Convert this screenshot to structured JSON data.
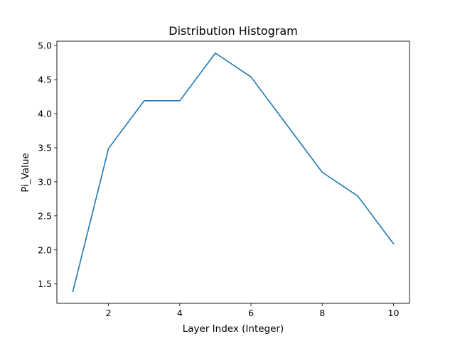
{
  "chart_data": {
    "type": "line",
    "title": "Distribution Histogram",
    "xlabel": "Layer Index (Integer)",
    "ylabel": "Pi_Value",
    "x": [
      1,
      2,
      3,
      4,
      5,
      6,
      7,
      8,
      9,
      10
    ],
    "series": [
      {
        "values": [
          1.39,
          3.49,
          4.19,
          4.19,
          4.89,
          4.54,
          3.84,
          3.14,
          2.79,
          2.09
        ],
        "color": "#1f77b4"
      }
    ],
    "xlim": [
      0.55,
      10.45
    ],
    "ylim": [
      1.215,
      5.065
    ],
    "xticks": [
      2,
      4,
      6,
      8,
      10
    ],
    "xtick_labels": [
      "2",
      "4",
      "6",
      "8",
      "10"
    ],
    "yticks": [
      1.5,
      2.0,
      2.5,
      3.0,
      3.5,
      4.0,
      4.5,
      5.0
    ],
    "ytick_labels": [
      "1.5",
      "2.0",
      "2.5",
      "3.0",
      "3.5",
      "4.0",
      "4.5",
      "5.0"
    ],
    "grid": false,
    "legend": "none"
  }
}
